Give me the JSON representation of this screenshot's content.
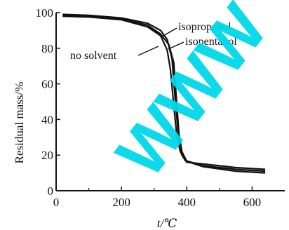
{
  "chart_data": {
    "type": "line",
    "xlabel": "t/℃",
    "ylabel": "Residual mass/%",
    "xlim": [
      0,
      700
    ],
    "ylim": [
      0,
      100
    ],
    "xticks": [
      0,
      200,
      400,
      600
    ],
    "yticks": [
      0,
      20,
      40,
      60,
      80,
      100
    ],
    "grid": false,
    "series": [
      {
        "name": "no solvent",
        "x": [
          20,
          100,
          200,
          280,
          320,
          340,
          355,
          365,
          375,
          385,
          400,
          450,
          500,
          550,
          640
        ],
        "y": [
          99,
          98.5,
          97,
          94,
          90,
          85,
          74,
          50,
          30,
          20,
          16,
          15,
          14,
          13,
          12
        ]
      },
      {
        "name": "isopropanol",
        "x": [
          20,
          100,
          200,
          280,
          320,
          340,
          350,
          360,
          370,
          380,
          395,
          450,
          550,
          640
        ],
        "y": [
          98,
          97.5,
          96,
          92,
          87,
          79,
          68,
          48,
          30,
          22,
          17,
          14,
          12,
          11
        ]
      },
      {
        "name": "isopentanol",
        "x": [
          20,
          100,
          200,
          280,
          320,
          345,
          360,
          368,
          376,
          385,
          400,
          450,
          550,
          640
        ],
        "y": [
          98.5,
          98,
          96.5,
          93,
          88,
          82,
          72,
          52,
          32,
          22,
          16.5,
          13.5,
          11,
          10
        ]
      }
    ],
    "annotations": [
      {
        "text": "isopropanol",
        "series": "isopropanol"
      },
      {
        "text": "isopentanol",
        "series": "isopentanol"
      },
      {
        "text": "no solvent",
        "series": "no solvent"
      }
    ],
    "colors": {
      "line": "#111111",
      "axis": "#111111",
      "watermark": "#00d8e8"
    }
  },
  "watermark": "WWW"
}
